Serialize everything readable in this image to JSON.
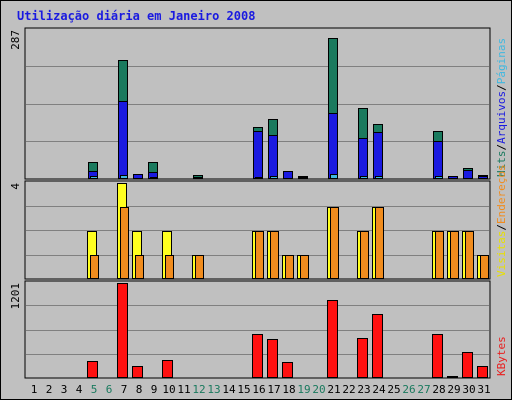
{
  "chart_data": {
    "type": "bar",
    "title": "Utilização diária em Janeiro 2008",
    "days": [
      "1",
      "2",
      "3",
      "4",
      "5",
      "6",
      "7",
      "8",
      "9",
      "10",
      "11",
      "12",
      "13",
      "14",
      "15",
      "16",
      "17",
      "18",
      "19",
      "20",
      "21",
      "22",
      "23",
      "24",
      "25",
      "26",
      "27",
      "28",
      "29",
      "30",
      "31"
    ],
    "weekend_days": [
      "5",
      "6",
      "12",
      "13",
      "19",
      "20",
      "26",
      "27"
    ],
    "panels": [
      {
        "name": "traffic",
        "ymax_label": "287",
        "ylim": [
          0,
          287
        ],
        "legend": [
          {
            "text": "Hits",
            "color": "#1a7a5e"
          },
          {
            "text": "/",
            "color": "#000000"
          },
          {
            "text": "Arquivos",
            "color": "#1a1ae0"
          },
          {
            "text": "/",
            "color": "#000000"
          },
          {
            "text": "Páginas",
            "color": "#40b8e0"
          }
        ],
        "series": [
          {
            "name": "Hits",
            "color": "#1a7a5e",
            "values": [
              0,
              0,
              0,
              0,
              33,
              0,
              229,
              10,
              32,
              0,
              0,
              7,
              0,
              0,
              0,
              101,
              116,
              15,
              6,
              0,
              271,
              0,
              136,
              106,
              0,
              0,
              0,
              93,
              6,
              21,
              7
            ]
          },
          {
            "name": "Arquivos",
            "color": "#1a1ae0",
            "values": [
              0,
              0,
              0,
              0,
              15,
              0,
              151,
              9,
              14,
              0,
              0,
              4,
              0,
              0,
              0,
              92,
              85,
              15,
              4,
              0,
              128,
              0,
              79,
              91,
              0,
              0,
              0,
              73,
              5,
              18,
              6
            ]
          },
          {
            "name": "Páginas",
            "color": "#40b8e0",
            "values": [
              0,
              0,
              0,
              0,
              5,
              0,
              8,
              2,
              4,
              0,
              0,
              1,
              0,
              0,
              0,
              4,
              6,
              2,
              1,
              0,
              9,
              0,
              6,
              6,
              0,
              0,
              0,
              5,
              1,
              2,
              1
            ]
          }
        ]
      },
      {
        "name": "visits",
        "ymax_label": "4",
        "ylim": [
          0,
          4
        ],
        "legend": [
          {
            "text": "Visitas",
            "color": "#e8e000"
          },
          {
            "text": "/",
            "color": "#000000"
          },
          {
            "text": "Endereços",
            "color": "#f08c1e"
          }
        ],
        "series": [
          {
            "name": "Visitas",
            "color": "#ffff20",
            "values": [
              0,
              0,
              0,
              0,
              2,
              0,
              4,
              2,
              0,
              2,
              0,
              1,
              0,
              0,
              0,
              2,
              2,
              1,
              1,
              0,
              3,
              0,
              2,
              3,
              0,
              0,
              0,
              2,
              2,
              2,
              1
            ]
          },
          {
            "name": "Endereços",
            "color": "#f08c1e",
            "values": [
              0,
              0,
              0,
              0,
              1,
              0,
              3,
              1,
              0,
              1,
              0,
              1,
              0,
              0,
              0,
              2,
              2,
              1,
              1,
              0,
              3,
              0,
              2,
              3,
              0,
              0,
              0,
              2,
              2,
              2,
              1
            ]
          }
        ]
      },
      {
        "name": "kbytes",
        "ymax_label": "1201",
        "ylim": [
          0,
          1201
        ],
        "legend": [
          {
            "text": "KBytes",
            "color": "#e82020"
          }
        ],
        "series": [
          {
            "name": "KBytes",
            "color": "#ff1010",
            "values": [
              0,
              0,
              0,
              0,
              220,
              0,
              1201,
              150,
              0,
              225,
              0,
              0,
              0,
              0,
              0,
              550,
              490,
              200,
              0,
              0,
              980,
              0,
              510,
              810,
              0,
              0,
              0,
              550,
              25,
              330,
              150
            ]
          }
        ]
      }
    ]
  }
}
